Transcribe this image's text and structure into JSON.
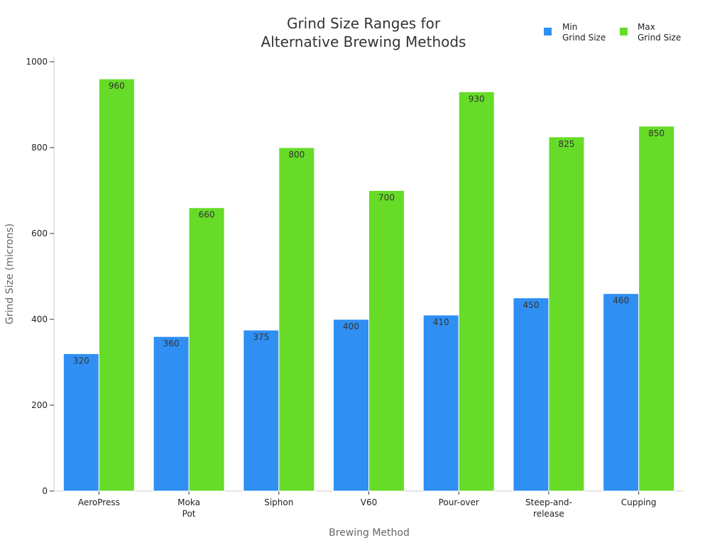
{
  "chart_data": {
    "type": "bar",
    "title_lines": [
      "Grind Size Ranges for",
      "Alternative Brewing Methods"
    ],
    "xlabel": "Brewing Method",
    "ylabel": "Grind Size (microns)",
    "categories": [
      [
        "AeroPress"
      ],
      [
        "Moka",
        "Pot"
      ],
      [
        "Siphon"
      ],
      [
        "V60"
      ],
      [
        "Pour-over"
      ],
      [
        "Steep-and-",
        "release"
      ],
      [
        "Cupping"
      ]
    ],
    "series": [
      {
        "name_lines": [
          "Min",
          "Grind Size"
        ],
        "color": "#2f8ff3",
        "values": [
          320,
          360,
          375,
          400,
          410,
          450,
          460
        ]
      },
      {
        "name_lines": [
          "Max",
          "Grind Size"
        ],
        "color": "#66dc28",
        "values": [
          960,
          660,
          800,
          700,
          930,
          825,
          850
        ]
      }
    ],
    "ylim": [
      0,
      1000
    ],
    "yticks": [
      0,
      200,
      400,
      600,
      800,
      1000
    ],
    "grid": false,
    "legend_position": "top-right"
  }
}
